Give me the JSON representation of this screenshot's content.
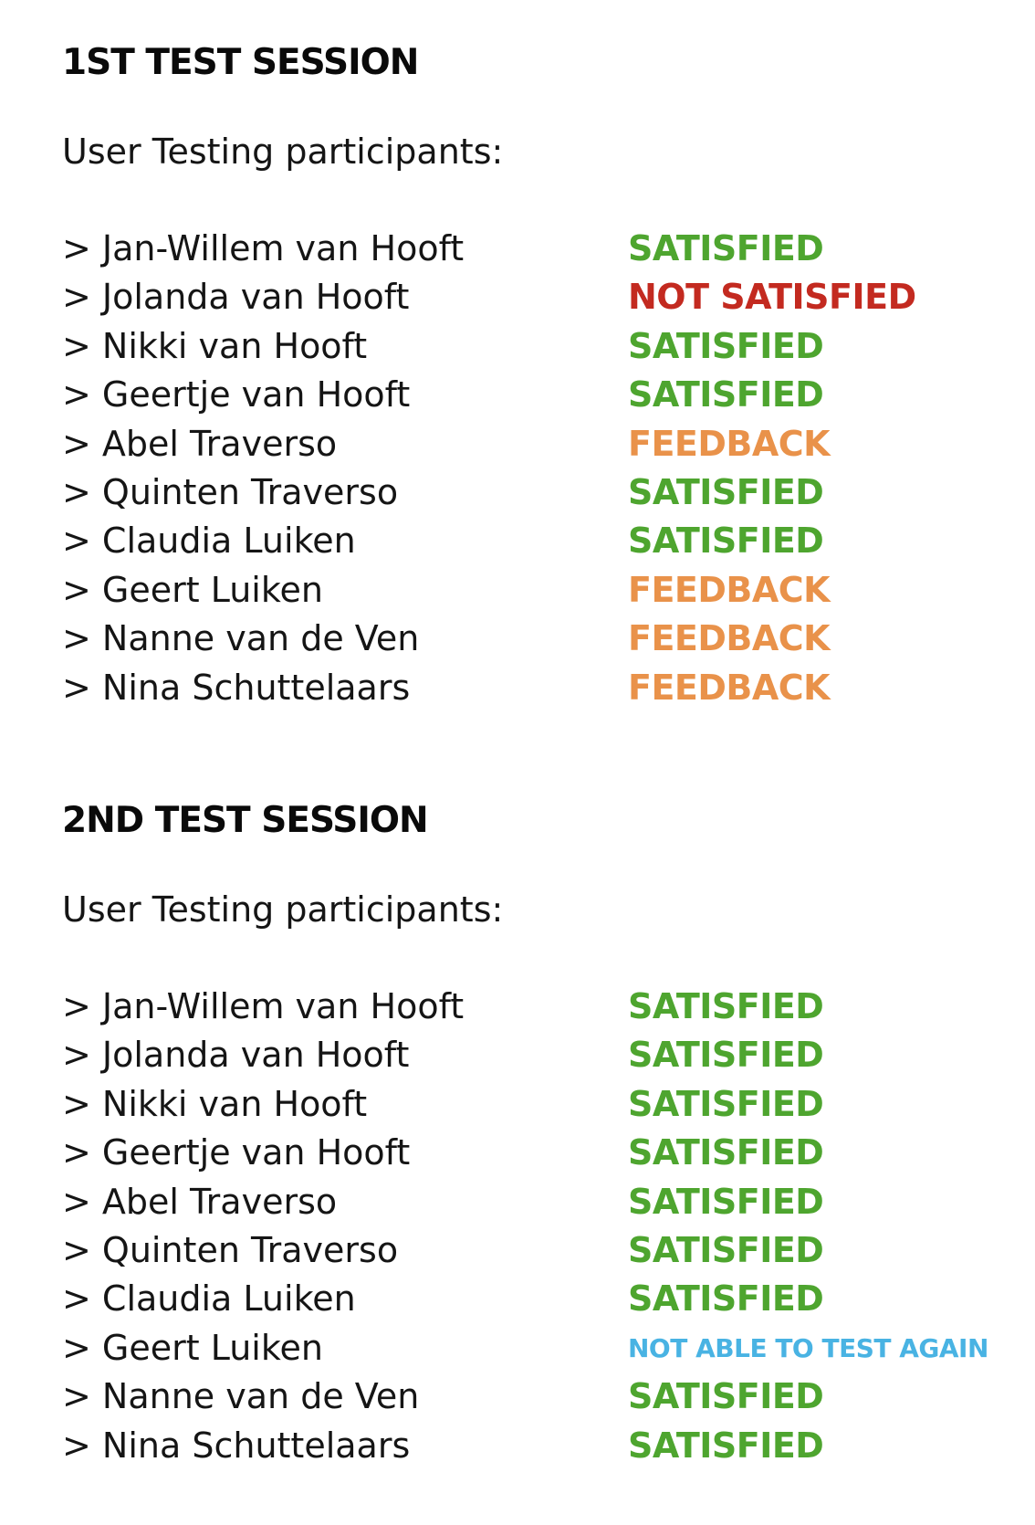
{
  "colors": {
    "satisfied": "#4ea52f",
    "not_satisfied": "#c32a20",
    "feedback": "#e9924a",
    "not_able": "#49b3e3"
  },
  "sessions": [
    {
      "title": "1ST TEST SESSION",
      "intro": "User Testing participants:",
      "rows": [
        {
          "name": "> Jan-Willem van Hooft",
          "status": "SATISFIED",
          "kind": "satisfied"
        },
        {
          "name": "> Jolanda van Hooft",
          "status": "NOT SATISFIED",
          "kind": "not_satisfied"
        },
        {
          "name": "> Nikki van Hooft",
          "status": "SATISFIED",
          "kind": "satisfied"
        },
        {
          "name": "> Geertje van Hooft",
          "status": "SATISFIED",
          "kind": "satisfied"
        },
        {
          "name": "> Abel Traverso",
          "status": "FEEDBACK",
          "kind": "feedback"
        },
        {
          "name": "> Quinten Traverso",
          "status": "SATISFIED",
          "kind": "satisfied"
        },
        {
          "name": "> Claudia Luiken",
          "status": "SATISFIED",
          "kind": "satisfied"
        },
        {
          "name": "> Geert Luiken",
          "status": "FEEDBACK",
          "kind": "feedback"
        },
        {
          "name": "> Nanne van de Ven",
          "status": "FEEDBACK",
          "kind": "feedback"
        },
        {
          "name": "> Nina Schuttelaars",
          "status": "FEEDBACK",
          "kind": "feedback"
        }
      ]
    },
    {
      "title": "2ND TEST SESSION",
      "intro": "User Testing participants:",
      "rows": [
        {
          "name": "> Jan-Willem van Hooft",
          "status": "SATISFIED",
          "kind": "satisfied"
        },
        {
          "name": "> Jolanda van Hooft",
          "status": "SATISFIED",
          "kind": "satisfied"
        },
        {
          "name": "> Nikki van Hooft",
          "status": "SATISFIED",
          "kind": "satisfied"
        },
        {
          "name": "> Geertje van Hooft",
          "status": "SATISFIED",
          "kind": "satisfied"
        },
        {
          "name": "> Abel Traverso",
          "status": "SATISFIED",
          "kind": "satisfied"
        },
        {
          "name": "> Quinten Traverso",
          "status": "SATISFIED",
          "kind": "satisfied"
        },
        {
          "name": "> Claudia Luiken",
          "status": "SATISFIED",
          "kind": "satisfied"
        },
        {
          "name": "> Geert Luiken",
          "status": "NOT ABLE TO TEST AGAIN",
          "kind": "not_able"
        },
        {
          "name": "> Nanne van de Ven",
          "status": "SATISFIED",
          "kind": "satisfied"
        },
        {
          "name": "> Nina Schuttelaars",
          "status": "SATISFIED",
          "kind": "satisfied"
        }
      ]
    }
  ]
}
